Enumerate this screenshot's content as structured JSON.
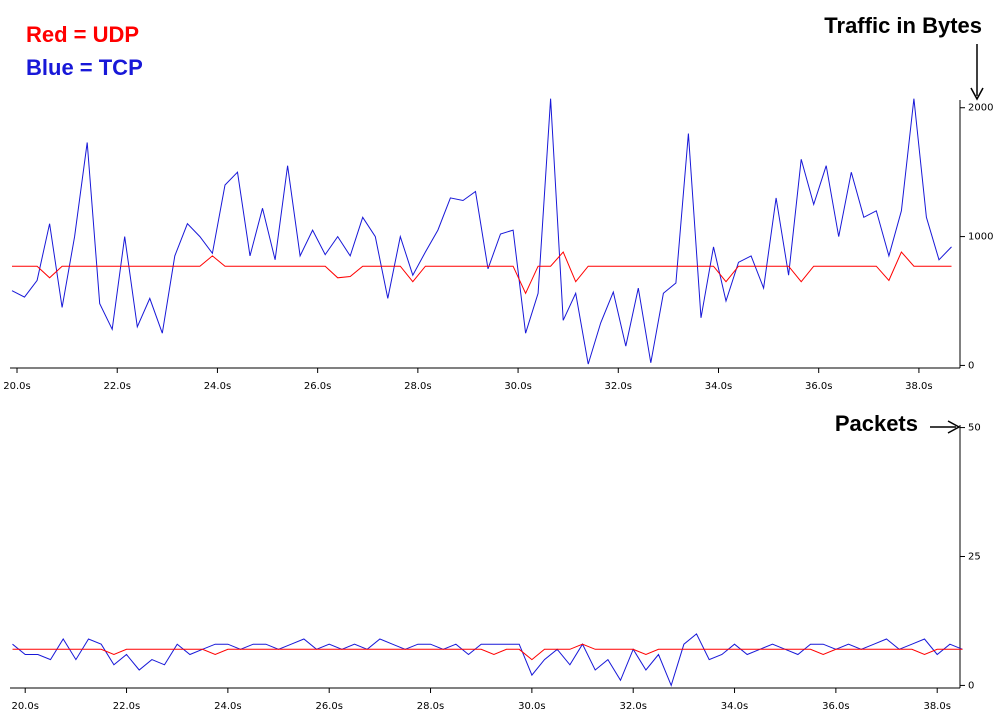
{
  "chart_data": [
    {
      "type": "line",
      "title": "Traffic in Bytes",
      "xlim": [
        19.86,
        38.82
      ],
      "ylim": [
        -20,
        2060
      ],
      "xticks": [
        {
          "value": 20,
          "label": "20.0s"
        },
        {
          "value": 22,
          "label": "22.0s"
        },
        {
          "value": 24,
          "label": "24.0s"
        },
        {
          "value": 26,
          "label": "26.0s"
        },
        {
          "value": 28,
          "label": "28.0s"
        },
        {
          "value": 30,
          "label": "30.0s"
        },
        {
          "value": 32,
          "label": "32.0s"
        },
        {
          "value": 34,
          "label": "34.0s"
        },
        {
          "value": 36,
          "label": "36.0s"
        },
        {
          "value": 38,
          "label": "38.0s"
        }
      ],
      "yticks": [
        0,
        1000,
        2000
      ],
      "x": [
        19.9,
        20.15,
        20.4,
        20.65,
        20.9,
        21.15,
        21.4,
        21.65,
        21.9,
        22.15,
        22.4,
        22.65,
        22.9,
        23.15,
        23.4,
        23.65,
        23.9,
        24.15,
        24.4,
        24.65,
        24.9,
        25.15,
        25.4,
        25.65,
        25.9,
        26.15,
        26.4,
        26.65,
        26.9,
        27.15,
        27.4,
        27.65,
        27.9,
        28.15,
        28.4,
        28.65,
        28.9,
        29.15,
        29.4,
        29.65,
        29.9,
        30.15,
        30.4,
        30.65,
        30.9,
        31.15,
        31.4,
        31.65,
        31.9,
        32.15,
        32.4,
        32.65,
        32.9,
        33.15,
        33.4,
        33.65,
        33.9,
        34.15,
        34.4,
        34.65,
        34.9,
        35.15,
        35.4,
        35.65,
        35.9,
        36.15,
        36.4,
        36.65,
        36.9,
        37.15,
        37.4,
        37.65,
        37.9,
        38.15,
        38.4,
        38.65
      ],
      "series": [
        {
          "name": "Red = UDP",
          "color": "#ff0000",
          "values": [
            770,
            770,
            770,
            680,
            770,
            770,
            770,
            770,
            770,
            770,
            770,
            770,
            770,
            770,
            770,
            770,
            850,
            770,
            770,
            770,
            770,
            770,
            770,
            770,
            770,
            770,
            680,
            690,
            770,
            770,
            770,
            770,
            650,
            770,
            770,
            770,
            770,
            770,
            770,
            770,
            770,
            560,
            770,
            770,
            880,
            650,
            770,
            770,
            770,
            770,
            770,
            770,
            770,
            770,
            770,
            770,
            770,
            650,
            770,
            770,
            770,
            770,
            770,
            650,
            770,
            770,
            770,
            770,
            770,
            770,
            660,
            880,
            770,
            770,
            770,
            770
          ]
        },
        {
          "name": "Blue = TCP",
          "color": "#1818d8",
          "values": [
            580,
            530,
            660,
            1100,
            450,
            1000,
            1730,
            480,
            280,
            1000,
            300,
            520,
            250,
            850,
            1100,
            1000,
            870,
            1400,
            1500,
            850,
            1220,
            820,
            1550,
            850,
            1050,
            860,
            1000,
            850,
            1150,
            1000,
            520,
            1000,
            700,
            880,
            1050,
            1300,
            1280,
            1350,
            750,
            1020,
            1050,
            250,
            560,
            2070,
            350,
            560,
            10,
            330,
            570,
            150,
            600,
            20,
            560,
            640,
            1800,
            370,
            920,
            500,
            800,
            850,
            600,
            1300,
            700,
            1600,
            1250,
            1550,
            1000,
            1500,
            1150,
            1200,
            850,
            1200,
            2070,
            1150,
            820,
            920
          ]
        }
      ]
    },
    {
      "type": "line",
      "title": "Packets",
      "xlim": [
        19.7,
        38.45
      ],
      "ylim": [
        -0.5,
        50.5
      ],
      "xticks": [
        {
          "value": 20,
          "label": "20.0s"
        },
        {
          "value": 22,
          "label": "22.0s"
        },
        {
          "value": 24,
          "label": "24.0s"
        },
        {
          "value": 26,
          "label": "26.0s"
        },
        {
          "value": 28,
          "label": "28.0s"
        },
        {
          "value": 30,
          "label": "30.0s"
        },
        {
          "value": 32,
          "label": "32.0s"
        },
        {
          "value": 34,
          "label": "34.0s"
        },
        {
          "value": 36,
          "label": "36.0s"
        },
        {
          "value": 38,
          "label": "38.0s"
        }
      ],
      "yticks": [
        0,
        25,
        50
      ],
      "x": [
        19.75,
        20,
        20.25,
        20.5,
        20.75,
        21,
        21.25,
        21.5,
        21.75,
        22,
        22.25,
        22.5,
        22.75,
        23,
        23.25,
        23.5,
        23.75,
        24,
        24.25,
        24.5,
        24.75,
        25,
        25.25,
        25.5,
        25.75,
        26,
        26.25,
        26.5,
        26.75,
        27,
        27.25,
        27.5,
        27.75,
        28,
        28.25,
        28.5,
        28.75,
        29,
        29.25,
        29.5,
        29.75,
        30,
        30.25,
        30.5,
        30.75,
        31,
        31.25,
        31.5,
        31.75,
        32,
        32.25,
        32.5,
        32.75,
        33,
        33.25,
        33.5,
        33.75,
        34,
        34.25,
        34.5,
        34.75,
        35,
        35.25,
        35.5,
        35.75,
        36,
        36.25,
        36.5,
        36.75,
        37,
        37.25,
        37.5,
        37.75,
        38,
        38.25,
        38.5
      ],
      "series": [
        {
          "color": "#ff0000",
          "values": [
            7,
            7,
            7,
            7,
            7,
            7,
            7,
            7,
            6,
            7,
            7,
            7,
            7,
            7,
            7,
            7,
            6,
            7,
            7,
            7,
            7,
            7,
            7,
            7,
            7,
            7,
            7,
            7,
            7,
            7,
            7,
            7,
            7,
            7,
            7,
            7,
            7,
            7,
            6,
            7,
            7,
            5,
            7,
            7,
            7,
            8,
            7,
            7,
            7,
            7,
            6,
            7,
            7,
            7,
            7,
            7,
            7,
            7,
            7,
            7,
            7,
            7,
            7,
            7,
            6,
            7,
            7,
            7,
            7,
            7,
            7,
            7,
            6,
            7,
            7,
            7
          ]
        },
        {
          "color": "#1818d8",
          "values": [
            8,
            6,
            6,
            5,
            9,
            5,
            9,
            8,
            4,
            6,
            3,
            5,
            4,
            8,
            6,
            7,
            8,
            8,
            7,
            8,
            8,
            7,
            8,
            9,
            7,
            8,
            7,
            8,
            7,
            9,
            8,
            7,
            8,
            8,
            7,
            8,
            6,
            8,
            8,
            8,
            8,
            2,
            5,
            7,
            4,
            8,
            3,
            5,
            1,
            7,
            3,
            6,
            0,
            8,
            10,
            5,
            6,
            8,
            6,
            7,
            8,
            7,
            6,
            8,
            8,
            7,
            8,
            7,
            8,
            9,
            7,
            8,
            9,
            6,
            8,
            7
          ]
        }
      ]
    }
  ]
}
